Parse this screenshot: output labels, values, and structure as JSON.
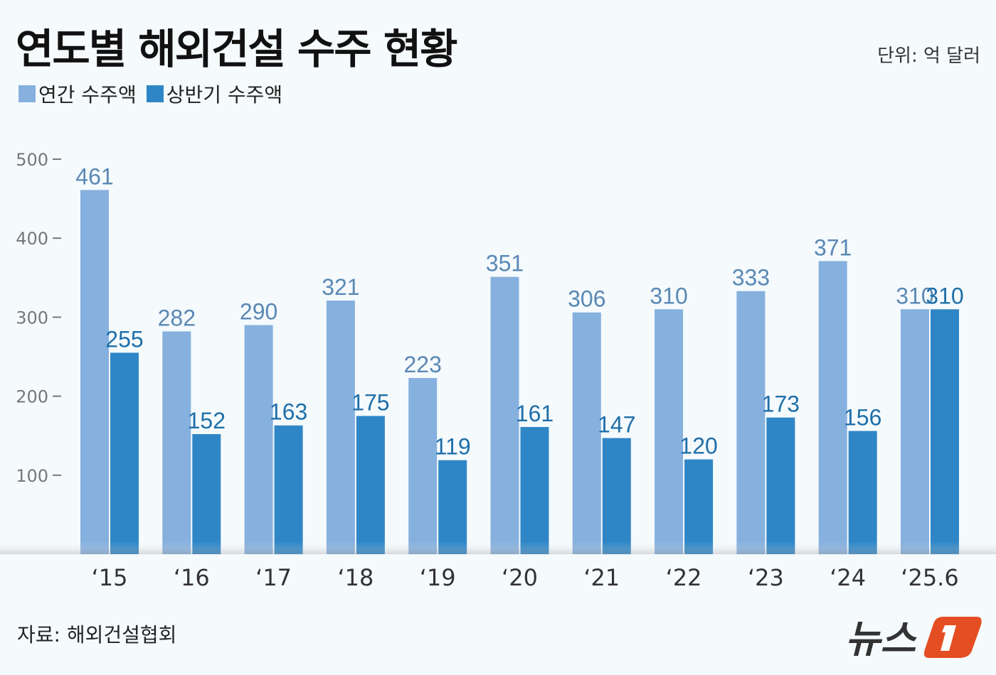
{
  "title": "연도별 해외건설 수주 현황",
  "unit": "단위: 억 달러",
  "source": "자료: 해외건설협회",
  "logo_text": "뉴스1",
  "colors": {
    "annual": "#86b0de",
    "half": "#2f86c6",
    "annual_label": "#5a88b4",
    "half_label": "#1f6fa8"
  },
  "chart_data": {
    "type": "bar",
    "title": "연도별 해외건설 수주 현황",
    "ylabel": "",
    "xlabel": "",
    "ylim": [
      0,
      500
    ],
    "yticks": [
      100,
      200,
      300,
      400,
      500
    ],
    "grid": false,
    "legend_position": "top-left",
    "categories": [
      "‘15",
      "‘16",
      "‘17",
      "‘18",
      "‘19",
      "‘20",
      "‘21",
      "‘22",
      "‘23",
      "‘24",
      "‘25.6"
    ],
    "series": [
      {
        "name": "연간 수주액",
        "values": [
          461,
          282,
          290,
          321,
          223,
          351,
          306,
          310,
          333,
          371,
          310
        ]
      },
      {
        "name": "상반기 수주액",
        "values": [
          255,
          152,
          163,
          175,
          119,
          161,
          147,
          120,
          173,
          156,
          310
        ]
      }
    ]
  }
}
